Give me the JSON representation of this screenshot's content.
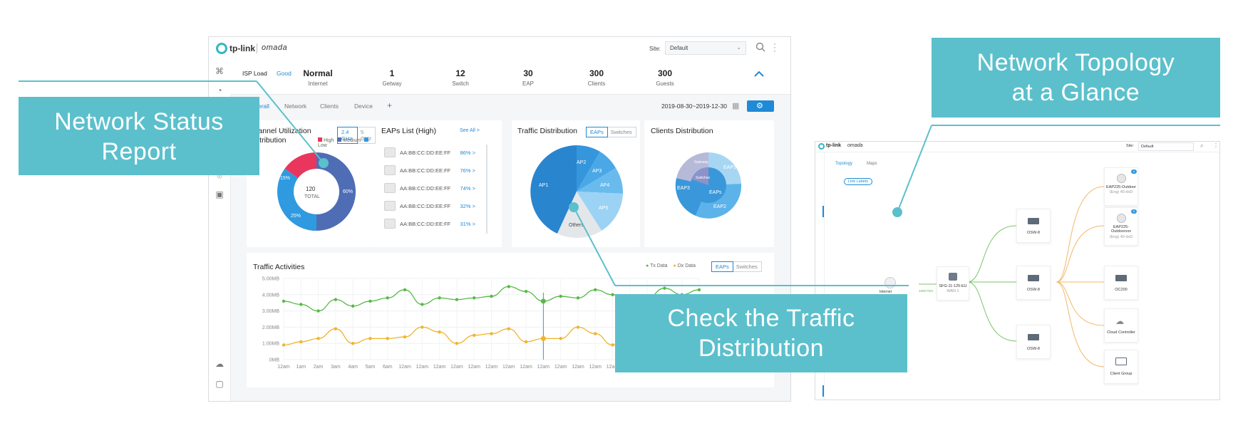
{
  "callouts": {
    "network_status": [
      "Network Status",
      "Report"
    ],
    "topology": [
      "Network Topology",
      "at a Glance"
    ],
    "traffic": [
      "Check the Traffic",
      "Distribution"
    ]
  },
  "main": {
    "brand": {
      "logo": "tp-link",
      "product": "omada"
    },
    "site": {
      "label": "Site:",
      "value": "Default"
    },
    "isp": {
      "label": "ISP Load",
      "status": "Good"
    },
    "stats": [
      {
        "value": "Normal",
        "label": "Internet"
      },
      {
        "value": "1",
        "label": "Getway"
      },
      {
        "value": "12",
        "label": "Switch"
      },
      {
        "value": "30",
        "label": "EAP"
      },
      {
        "value": "300",
        "label": "Clients"
      },
      {
        "value": "300",
        "label": "Guests"
      }
    ],
    "tabs": [
      "Overall",
      "Network",
      "Clients",
      "Device"
    ],
    "date_range": "2019-08-30~2019-12-30",
    "channel": {
      "title_line1": "Channel Utilization",
      "title_line2": "Distribution",
      "bands": [
        "2.4 GHz",
        "5 GHz"
      ],
      "legend": [
        "High",
        "Medium",
        "Low"
      ],
      "center_value": "120",
      "center_label": "TOTAL",
      "labels": {
        "high": "15%",
        "medium": "60%",
        "low": "25%"
      }
    },
    "eaps_list": {
      "title": "EAPs List (High)",
      "see_all": "See All >",
      "rows": [
        {
          "mac": "AA:BB:CC:DD:EE:FF",
          "pct": "86%  >"
        },
        {
          "mac": "AA:BB:CC:DD:EE:FF",
          "pct": "76%  >"
        },
        {
          "mac": "AA:BB:CC:DD:EE:FF",
          "pct": "74%  >"
        },
        {
          "mac": "AA:BB:CC:DD:EE:FF",
          "pct": "32%  >"
        },
        {
          "mac": "AA:BB:CC:DD:EE:FF",
          "pct": "31%  >"
        }
      ]
    },
    "traffic_dist": {
      "title": "Traffic Distribution",
      "toggle": [
        "EAPs",
        "Switches"
      ],
      "slices": [
        "AP1",
        "AP2",
        "AP3",
        "AP4",
        "AP5",
        "Others"
      ]
    },
    "clients_dist": {
      "title": "Clients Distribution",
      "labels": [
        "EAP1",
        "EAP2",
        "EAP3",
        "EAPs",
        "Switches",
        "Gateway"
      ]
    },
    "traffic_activities": {
      "title": "Traffic Activities",
      "legend": [
        "Tx Data",
        "Dx Data"
      ],
      "toggle": [
        "EAPs",
        "Switches"
      ]
    }
  },
  "chart_data": {
    "type": "line",
    "title": "Traffic Activities",
    "x": [
      "12am",
      "1am",
      "2am",
      "3am",
      "4am",
      "5am",
      "6am",
      "12am",
      "12am",
      "12am",
      "12am",
      "12am",
      "12am",
      "12am",
      "12am",
      "12am",
      "12am",
      "12am",
      "12am",
      "12am",
      "12am",
      "12am",
      "12am",
      "12am",
      "12am"
    ],
    "y_ticks": [
      "5.00MB",
      "4.00MB",
      "3.00MB",
      "2.00MB",
      "1.00MB",
      "0MB"
    ],
    "ylim": [
      0,
      5
    ],
    "series": [
      {
        "name": "Tx Data",
        "color": "#58b947",
        "values": [
          3.6,
          3.4,
          3.0,
          3.7,
          3.3,
          3.6,
          3.8,
          4.3,
          3.4,
          3.8,
          3.7,
          3.8,
          3.9,
          4.5,
          4.2,
          3.6,
          3.9,
          3.8,
          4.3,
          4.0,
          3.9,
          3.8,
          4.4,
          4.0,
          4.3
        ]
      },
      {
        "name": "Dx Data",
        "color": "#f0b429",
        "values": [
          0.9,
          1.1,
          1.3,
          1.9,
          1.0,
          1.3,
          1.3,
          1.4,
          2.0,
          1.7,
          1.0,
          1.5,
          1.6,
          1.9,
          1.1,
          1.3,
          1.3,
          2.0,
          1.6,
          0.9,
          1.2,
          1.4,
          1.0,
          1.5,
          1.3
        ]
      }
    ]
  },
  "topology": {
    "brand": {
      "logo": "tp-link",
      "product": "omada"
    },
    "site": {
      "label": "Site:",
      "value": "Default"
    },
    "tabs": [
      "Topology",
      "Maps"
    ],
    "link_labels": "Link Labels",
    "internet": "Internet",
    "gateway": {
      "name": "SFG-11-125-EU",
      "sub": "WAN 1",
      "link": "1000 FDX"
    },
    "switches": [
      "OSW-8",
      "OSW-8",
      "OSW-8"
    ],
    "devices": [
      {
        "name": "EAP225-Outdoor",
        "sub": "(Eng) 40 dxD",
        "badge": "4"
      },
      {
        "name": "EAP225-Outdoorxxx",
        "sub": "(Eng) 40 dxD",
        "badge": "5"
      },
      {
        "name": "OC200",
        "sub": ""
      },
      {
        "name": "Cloud Controller",
        "sub": ""
      },
      {
        "name": "Client Group",
        "sub": ""
      }
    ]
  }
}
